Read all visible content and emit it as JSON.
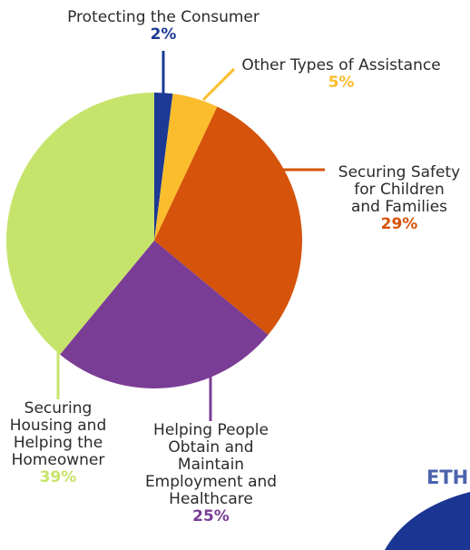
{
  "chart_data": {
    "type": "pie",
    "title": "",
    "slices": [
      {
        "label": "Protecting the Consumer",
        "value": 2,
        "display": "2%",
        "color": "#1c3a94"
      },
      {
        "label": "Other Types of Assistance",
        "value": 5,
        "display": "5%",
        "color": "#fbbd2c"
      },
      {
        "label": "Securing Safety\nfor Children\nand Families",
        "value": 29,
        "display": "29%",
        "color": "#d5530a"
      },
      {
        "label": "Helping People\nObtain and\nMaintain\nEmployment and\nHealthcare",
        "value": 25,
        "display": "25%",
        "color": "#7a3d95"
      },
      {
        "label": "Securing\nHousing and\nHelping the\nHomeowner",
        "value": 39,
        "display": "39%",
        "color": "#c6e46b"
      }
    ],
    "start": "top",
    "direction": "clockwise"
  },
  "corner_text": "ETH",
  "corner_shape_color": "#1a3592"
}
